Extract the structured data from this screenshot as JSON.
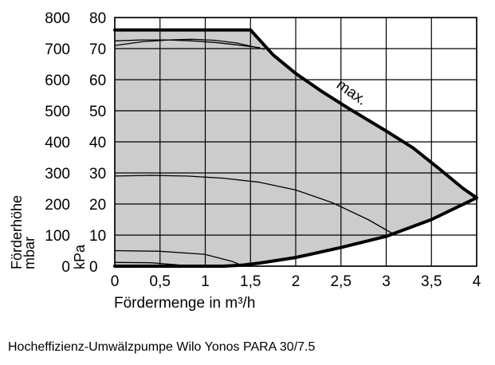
{
  "caption": "Hocheffizienz-Umwälzpumpe Wilo Yonos PARA 30/7.5",
  "colors": {
    "area": "#cccccc",
    "line": "#000000",
    "grid": "#000000",
    "background": "#ffffff"
  },
  "chart_data": {
    "type": "line",
    "title": "",
    "xlabel": "Fördermenge in m³/h",
    "ylabel_left": [
      "Förderhöhe",
      "mbar"
    ],
    "ylabel_right": "kPa",
    "xlim": [
      0,
      4
    ],
    "ylim_kpa": [
      0,
      80
    ],
    "ylim_mbar": [
      0,
      800
    ],
    "x_ticks": [
      0,
      0.5,
      1,
      1.5,
      2,
      2.5,
      3,
      3.5,
      4
    ],
    "x_tick_labels": [
      "0",
      "0,5",
      "1",
      "1,5",
      "2",
      "2,5",
      "3",
      "3,5",
      "4"
    ],
    "y_ticks_kpa": [
      0,
      10,
      20,
      30,
      40,
      50,
      60,
      70,
      80
    ],
    "y_tick_labels_kpa": [
      "0",
      "10",
      "20",
      "30",
      "40",
      "50",
      "60",
      "70",
      "80"
    ],
    "y_tick_labels_mbar": [
      "0",
      "100",
      "200",
      "300",
      "400",
      "500",
      "600",
      "700",
      "800"
    ],
    "grid": true,
    "area": {
      "upper_x": [
        0,
        1.5,
        1.75,
        2.0,
        2.3,
        2.6,
        3.0,
        3.3,
        3.6,
        3.85,
        4.0
      ],
      "upper_y": [
        76,
        76,
        68,
        62,
        56,
        50.5,
        43.5,
        38,
        31,
        25,
        22
      ],
      "lower_x": [
        0,
        0.8,
        1.2,
        1.4,
        1.6,
        2.0,
        2.5,
        3.0,
        3.5,
        4.0
      ],
      "lower_y": [
        0,
        0,
        0,
        0.3,
        1,
        2.8,
        6,
        9.6,
        15,
        22
      ]
    },
    "series": [
      {
        "name": "max.",
        "x": [
          0,
          1.5,
          1.75,
          2.0,
          2.3,
          2.6,
          3.0,
          3.3,
          3.6,
          3.85,
          4.0
        ],
        "y": [
          76,
          76,
          68,
          62,
          56,
          50.5,
          43.5,
          38,
          31,
          25,
          22
        ]
      },
      {
        "x": [
          0,
          0.3,
          0.6,
          0.85,
          1.1,
          1.35,
          1.55,
          1.65
        ],
        "y": [
          71,
          72.2,
          72.8,
          73,
          72.7,
          71.8,
          70.5,
          69.8
        ]
      },
      {
        "x": [
          0,
          0.3,
          0.6,
          0.85,
          1.1,
          1.35,
          1.55,
          1.6
        ],
        "y": [
          72.5,
          72.8,
          72.8,
          72.5,
          72,
          71.2,
          70.5,
          70.3
        ]
      },
      {
        "x": [
          0,
          0.4,
          0.8,
          1.2,
          1.6,
          2.0,
          2.4,
          2.8,
          3.1
        ],
        "y": [
          29,
          29.2,
          29,
          28.3,
          27,
          24.5,
          20.5,
          15,
          10
        ]
      },
      {
        "x": [
          0,
          0.5,
          1.0,
          1.3,
          1.4
        ],
        "y": [
          5,
          4.8,
          3.8,
          1.5,
          0.3
        ]
      },
      {
        "x": [
          0,
          0.4,
          0.7,
          0.75
        ],
        "y": [
          1.2,
          1.1,
          0.4,
          0
        ]
      }
    ],
    "annotations": [
      {
        "text": "max.",
        "x": 2.75,
        "y": 52
      }
    ]
  }
}
